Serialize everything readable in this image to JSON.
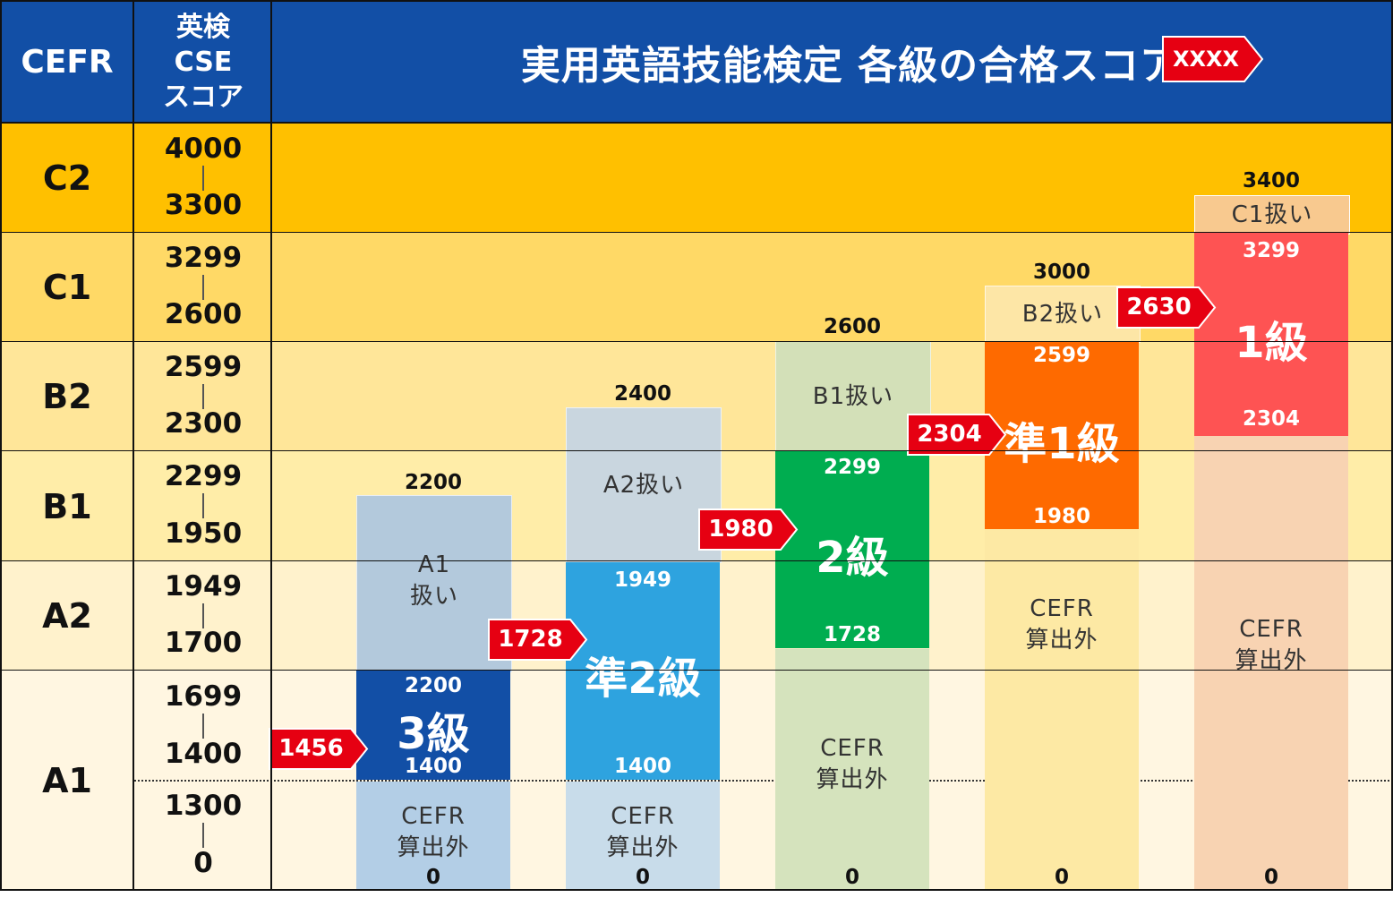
{
  "header": {
    "cefr": "CEFR",
    "cse_line1": "英検",
    "cse_line2": "CSE",
    "cse_line3": "スコア",
    "title": "実用英語技能検定 各級の合格スコア",
    "legend_badge": "XXXX"
  },
  "levels": [
    {
      "name": "C2",
      "top": "4000",
      "bottom": "3300"
    },
    {
      "name": "C1",
      "top": "3299",
      "bottom": "2600"
    },
    {
      "name": "B2",
      "top": "2599",
      "bottom": "2300"
    },
    {
      "name": "B1",
      "top": "2299",
      "bottom": "1950"
    },
    {
      "name": "A2",
      "top": "1949",
      "bottom": "1700"
    },
    {
      "name": "A1",
      "top": "1699",
      "mid1": "1400",
      "mid2": "1300",
      "bottom": "0"
    }
  ],
  "grades": [
    {
      "name": "3級",
      "max": "2200",
      "pass_top": "2200",
      "pass_bottom": "1400",
      "cefr_label_line1": "A1",
      "cefr_label_line2": "扱い",
      "outside_line1": "CEFR",
      "outside_line2": "算出外",
      "zero": "0",
      "passing": "1456"
    },
    {
      "name": "準2級",
      "max": "2400",
      "pass_top": "1949",
      "pass_bottom": "1400",
      "cefr_label": "A2扱い",
      "outside_line1": "CEFR",
      "outside_line2": "算出外",
      "zero": "0",
      "passing": "1728"
    },
    {
      "name": "2級",
      "max": "2600",
      "pass_top": "2299",
      "pass_bottom": "1728",
      "cefr_label": "B1扱い",
      "outside_line1": "CEFR",
      "outside_line2": "算出外",
      "zero": "0",
      "passing": "1980"
    },
    {
      "name": "準1級",
      "max": "3000",
      "pass_top": "2599",
      "pass_bottom": "1980",
      "cefr_label": "B2扱い",
      "outside_line1": "CEFR",
      "outside_line2": "算出外",
      "zero": "0",
      "passing": "2304"
    },
    {
      "name": "1級",
      "max": "3400",
      "pass_top": "3299",
      "pass_bottom": "2304",
      "cefr_label": "C1扱い",
      "outside_line1": "CEFR",
      "outside_line2": "算出外",
      "zero": "0",
      "passing": "2630"
    }
  ],
  "colors": {
    "header": "#124fa6",
    "band_c2": "#ffc000",
    "band_c1": "#ffd966",
    "band_b2": "#ffe699",
    "band_b1": "#fff0b3",
    "band_a2": "#fff2cc",
    "band_a1": "#fff6e1",
    "arrow": "#e60012"
  }
}
